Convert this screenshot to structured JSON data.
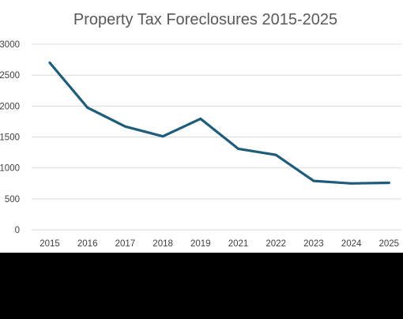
{
  "chart_data": {
    "type": "line",
    "title": "Property Tax Foreclosures 2015-2025",
    "xlabel": "",
    "ylabel": "",
    "categories": [
      "2015",
      "2016",
      "2017",
      "2018",
      "2019",
      "2021",
      "2022",
      "2023",
      "2024",
      "2025"
    ],
    "series": [
      {
        "values": [
          2700,
          1975,
          1670,
          1510,
          1795,
          1310,
          1210,
          790,
          750,
          760
        ]
      }
    ],
    "ylim": [
      0,
      3000
    ],
    "yticks": [
      "0",
      "500",
      "1000",
      "1500",
      "2000",
      "2500",
      "3000"
    ],
    "grid": "horizontal",
    "legend": "none",
    "line_color": "#1f5c7a",
    "grid_color": "#d9d9d9",
    "background": "#ffffff"
  }
}
